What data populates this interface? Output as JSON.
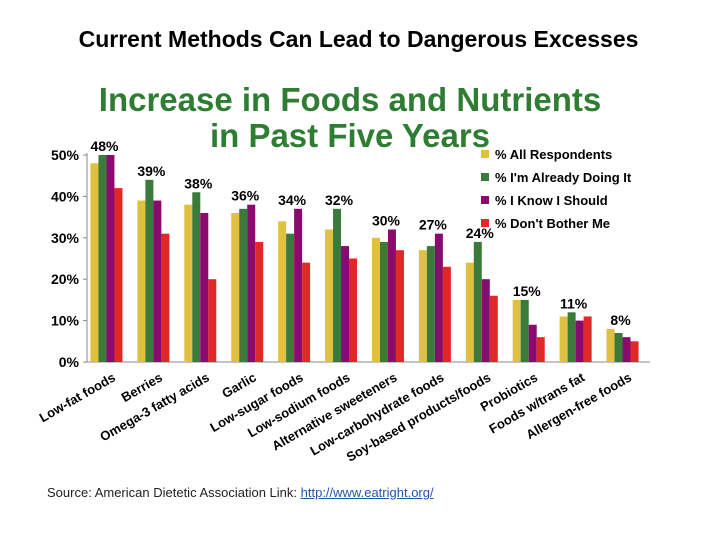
{
  "slide": {
    "title": "Current Methods Can Lead to Dangerous Excesses",
    "source_prefix": "Source: American Dietetic Association Link:",
    "source_link": "http://www.eatright.org/"
  },
  "chart_data": {
    "type": "bar",
    "title_line1": "Increase in Foods and Nutrients",
    "title_line2": "in Past Five Years",
    "categories": [
      "Low-fat foods",
      "Berries",
      "Omega-3 fatty acids",
      "Garlic",
      "Low-sugar foods",
      "Low-sodium foods",
      "Alternative sweeteners",
      "Low-carbohydrate foods",
      "Soy-based products/foods",
      "Probiotics",
      "Foods w/trans fat",
      "Allergen-free foods"
    ],
    "series": [
      {
        "name": "% All Respondents",
        "color": "#e0c040",
        "values": [
          48,
          39,
          38,
          36,
          34,
          32,
          30,
          27,
          24,
          15,
          11,
          8
        ]
      },
      {
        "name": "% I'm Already Doing It",
        "color": "#3a7a3a",
        "values": [
          50,
          44,
          41,
          37,
          31,
          37,
          29,
          28,
          29,
          15,
          12,
          7
        ]
      },
      {
        "name": "% I Know I Should",
        "color": "#8b0a6e",
        "values": [
          50,
          39,
          36,
          38,
          37,
          28,
          32,
          31,
          20,
          9,
          10,
          6
        ]
      },
      {
        "name": "% Don't Bother Me",
        "color": "#e02828",
        "values": [
          42,
          31,
          20,
          29,
          24,
          25,
          27,
          23,
          16,
          6,
          11,
          5
        ]
      }
    ],
    "data_labels": [
      "48%",
      "39%",
      "38%",
      "36%",
      "34%",
      "32%",
      "30%",
      "27%",
      "24%",
      "15%",
      "11%",
      "8%"
    ],
    "y_ticks": [
      "0%",
      "10%",
      "20%",
      "30%",
      "40%",
      "50%"
    ],
    "ylim": [
      0,
      50
    ],
    "legend_position": "top-right",
    "grid": false
  }
}
